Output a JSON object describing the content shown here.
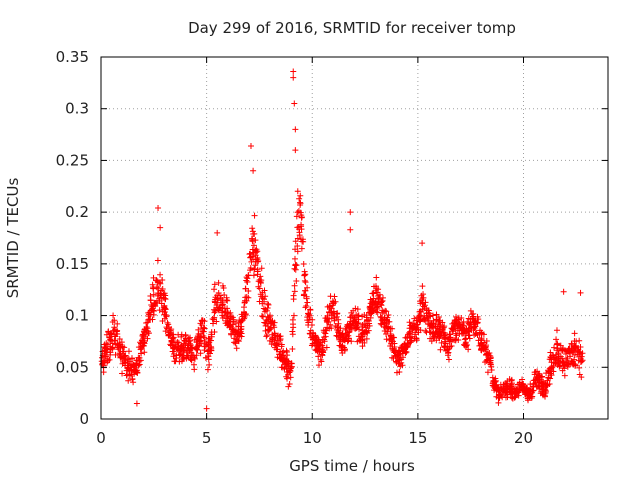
{
  "chart_data": {
    "type": "scatter",
    "title": "Day 299 of 2016, SRMTID for receiver tomp",
    "xlabel": "GPS time / hours",
    "ylabel": "SRMTID / TECUs",
    "xlim": [
      0,
      24
    ],
    "ylim": [
      0,
      0.35
    ],
    "xticks": [
      0,
      5,
      10,
      15,
      20
    ],
    "xtick_labels": [
      "0",
      "5",
      "10",
      "15",
      "20"
    ],
    "yticks": [
      0,
      0.05,
      0.1,
      0.15,
      0.2,
      0.25,
      0.3,
      0.35
    ],
    "ytick_labels": [
      "0",
      "0.05",
      "0.1",
      "0.15",
      "0.2",
      "0.25",
      "0.3",
      "0.35"
    ],
    "grid": true,
    "marker": "plus",
    "color": "#ff0000",
    "series": [
      {
        "name": "SRMTID",
        "x": [
          0.0,
          0.2,
          0.4,
          0.6,
          0.8,
          1.0,
          1.2,
          1.4,
          1.6,
          1.8,
          2.0,
          2.2,
          2.4,
          2.6,
          2.8,
          3.0,
          3.2,
          3.4,
          3.6,
          3.8,
          4.0,
          4.2,
          4.4,
          4.6,
          4.8,
          5.0,
          5.2,
          5.4,
          5.6,
          5.8,
          6.0,
          6.2,
          6.4,
          6.6,
          6.8,
          7.0,
          7.2,
          7.4,
          7.6,
          7.8,
          8.0,
          8.2,
          8.4,
          8.6,
          8.8,
          9.0,
          9.2,
          9.4,
          9.6,
          9.8,
          10.0,
          10.2,
          10.4,
          10.6,
          10.8,
          11.0,
          11.2,
          11.4,
          11.6,
          11.8,
          12.0,
          12.2,
          12.4,
          12.6,
          12.8,
          13.0,
          13.2,
          13.4,
          13.6,
          13.8,
          14.0,
          14.2,
          14.4,
          14.6,
          14.8,
          15.0,
          15.2,
          15.4,
          15.6,
          15.8,
          16.0,
          16.2,
          16.4,
          16.6,
          16.8,
          17.0,
          17.2,
          17.4,
          17.6,
          17.8,
          18.0,
          18.2,
          18.4,
          18.6,
          18.8,
          19.0,
          19.2,
          19.4,
          19.6,
          19.8,
          20.0,
          20.2,
          20.4,
          20.6,
          20.8,
          21.0,
          21.2,
          21.4,
          21.6,
          21.8,
          22.0,
          22.2,
          22.4,
          22.6,
          22.8
        ],
        "center": [
          0.055,
          0.065,
          0.075,
          0.085,
          0.075,
          0.06,
          0.05,
          0.05,
          0.045,
          0.06,
          0.075,
          0.09,
          0.11,
          0.125,
          0.13,
          0.11,
          0.085,
          0.07,
          0.065,
          0.07,
          0.07,
          0.07,
          0.06,
          0.075,
          0.09,
          0.065,
          0.07,
          0.11,
          0.12,
          0.11,
          0.1,
          0.09,
          0.08,
          0.085,
          0.11,
          0.14,
          0.175,
          0.15,
          0.12,
          0.1,
          0.09,
          0.08,
          0.07,
          0.06,
          0.05,
          0.04,
          0.15,
          0.21,
          0.14,
          0.1,
          0.08,
          0.07,
          0.065,
          0.08,
          0.1,
          0.11,
          0.09,
          0.07,
          0.08,
          0.09,
          0.1,
          0.09,
          0.08,
          0.09,
          0.11,
          0.12,
          0.11,
          0.1,
          0.09,
          0.07,
          0.06,
          0.06,
          0.07,
          0.08,
          0.085,
          0.09,
          0.11,
          0.1,
          0.09,
          0.09,
          0.085,
          0.08,
          0.07,
          0.08,
          0.09,
          0.09,
          0.08,
          0.085,
          0.095,
          0.09,
          0.075,
          0.065,
          0.06,
          0.035,
          0.025,
          0.025,
          0.03,
          0.03,
          0.025,
          0.03,
          0.03,
          0.025,
          0.025,
          0.04,
          0.035,
          0.03,
          0.045,
          0.06,
          0.065,
          0.06,
          0.055,
          0.06,
          0.065,
          0.06,
          0.065
        ],
        "spread": [
          0.02,
          0.02,
          0.025,
          0.025,
          0.02,
          0.02,
          0.02,
          0.02,
          0.02,
          0.02,
          0.02,
          0.025,
          0.03,
          0.035,
          0.04,
          0.03,
          0.025,
          0.02,
          0.02,
          0.02,
          0.02,
          0.02,
          0.02,
          0.02,
          0.025,
          0.03,
          0.025,
          0.03,
          0.03,
          0.025,
          0.025,
          0.02,
          0.02,
          0.02,
          0.025,
          0.04,
          0.045,
          0.035,
          0.03,
          0.025,
          0.02,
          0.02,
          0.02,
          0.02,
          0.02,
          0.02,
          0.05,
          0.06,
          0.035,
          0.025,
          0.02,
          0.02,
          0.02,
          0.02,
          0.025,
          0.025,
          0.02,
          0.02,
          0.02,
          0.025,
          0.025,
          0.02,
          0.02,
          0.02,
          0.025,
          0.025,
          0.025,
          0.02,
          0.02,
          0.02,
          0.02,
          0.02,
          0.02,
          0.02,
          0.02,
          0.025,
          0.03,
          0.025,
          0.02,
          0.02,
          0.02,
          0.02,
          0.02,
          0.02,
          0.02,
          0.02,
          0.02,
          0.02,
          0.02,
          0.02,
          0.02,
          0.02,
          0.02,
          0.015,
          0.012,
          0.012,
          0.012,
          0.012,
          0.012,
          0.012,
          0.012,
          0.012,
          0.012,
          0.015,
          0.015,
          0.015,
          0.02,
          0.025,
          0.025,
          0.02,
          0.02,
          0.02,
          0.025,
          0.025,
          0.025
        ],
        "peaks": [
          {
            "x": 2.7,
            "y": 0.204
          },
          {
            "x": 2.8,
            "y": 0.185
          },
          {
            "x": 5.0,
            "y": 0.01
          },
          {
            "x": 5.5,
            "y": 0.18
          },
          {
            "x": 7.1,
            "y": 0.264
          },
          {
            "x": 7.2,
            "y": 0.24
          },
          {
            "x": 9.1,
            "y": 0.336
          },
          {
            "x": 9.1,
            "y": 0.33
          },
          {
            "x": 9.15,
            "y": 0.305
          },
          {
            "x": 9.2,
            "y": 0.28
          },
          {
            "x": 9.2,
            "y": 0.26
          },
          {
            "x": 11.8,
            "y": 0.2
          },
          {
            "x": 11.8,
            "y": 0.183
          },
          {
            "x": 15.2,
            "y": 0.17
          },
          {
            "x": 1.7,
            "y": 0.015
          },
          {
            "x": 21.9,
            "y": 0.123
          },
          {
            "x": 22.7,
            "y": 0.122
          }
        ]
      }
    ]
  }
}
